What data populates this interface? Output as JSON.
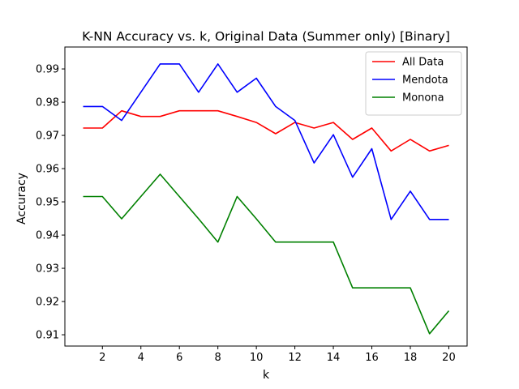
{
  "chart_data": {
    "type": "line",
    "title": "K-NN Accuracy vs. k, Original Data (Summer only) [Binary]",
    "xlabel": "k",
    "ylabel": "Accuracy",
    "xlim": [
      0.05,
      20.95
    ],
    "ylim": [
      0.9066,
      0.9966
    ],
    "xticks": [
      2,
      4,
      6,
      8,
      10,
      12,
      14,
      16,
      18,
      20
    ],
    "yticks": [
      0.91,
      0.92,
      0.93,
      0.94,
      0.95,
      0.96,
      0.97,
      0.98,
      0.99
    ],
    "ytick_labels": [
      "0.91",
      "0.92",
      "0.93",
      "0.94",
      "0.95",
      "0.96",
      "0.97",
      "0.98",
      "0.99"
    ],
    "grid": false,
    "legend_position": "top-right",
    "x": [
      1,
      2,
      3,
      4,
      5,
      6,
      7,
      8,
      9,
      10,
      11,
      12,
      13,
      14,
      15,
      16,
      17,
      18,
      19,
      20
    ],
    "series": [
      {
        "name": "All Data",
        "color": "#ff0000",
        "values": [
          0.9722,
          0.9722,
          0.9774,
          0.9757,
          0.9757,
          0.9774,
          0.9774,
          0.9774,
          0.9757,
          0.9739,
          0.9705,
          0.9739,
          0.9722,
          0.9739,
          0.9688,
          0.9722,
          0.9653,
          0.9688,
          0.9653,
          0.967
        ]
      },
      {
        "name": "Mendota",
        "color": "#0000ff",
        "values": [
          0.9787,
          0.9787,
          0.9745,
          0.983,
          0.9915,
          0.9915,
          0.983,
          0.9915,
          0.983,
          0.9872,
          0.9787,
          0.9745,
          0.9617,
          0.9702,
          0.9574,
          0.966,
          0.9447,
          0.9532,
          0.9447,
          0.9447
        ]
      },
      {
        "name": "Monona",
        "color": "#008000",
        "values": [
          0.9516,
          0.9516,
          0.9449,
          0.9516,
          0.9583,
          0.9516,
          0.9449,
          0.9379,
          0.9516,
          0.9449,
          0.9379,
          0.9379,
          0.9379,
          0.9379,
          0.9241,
          0.9241,
          0.9241,
          0.9241,
          0.9103,
          0.9172
        ]
      }
    ]
  }
}
